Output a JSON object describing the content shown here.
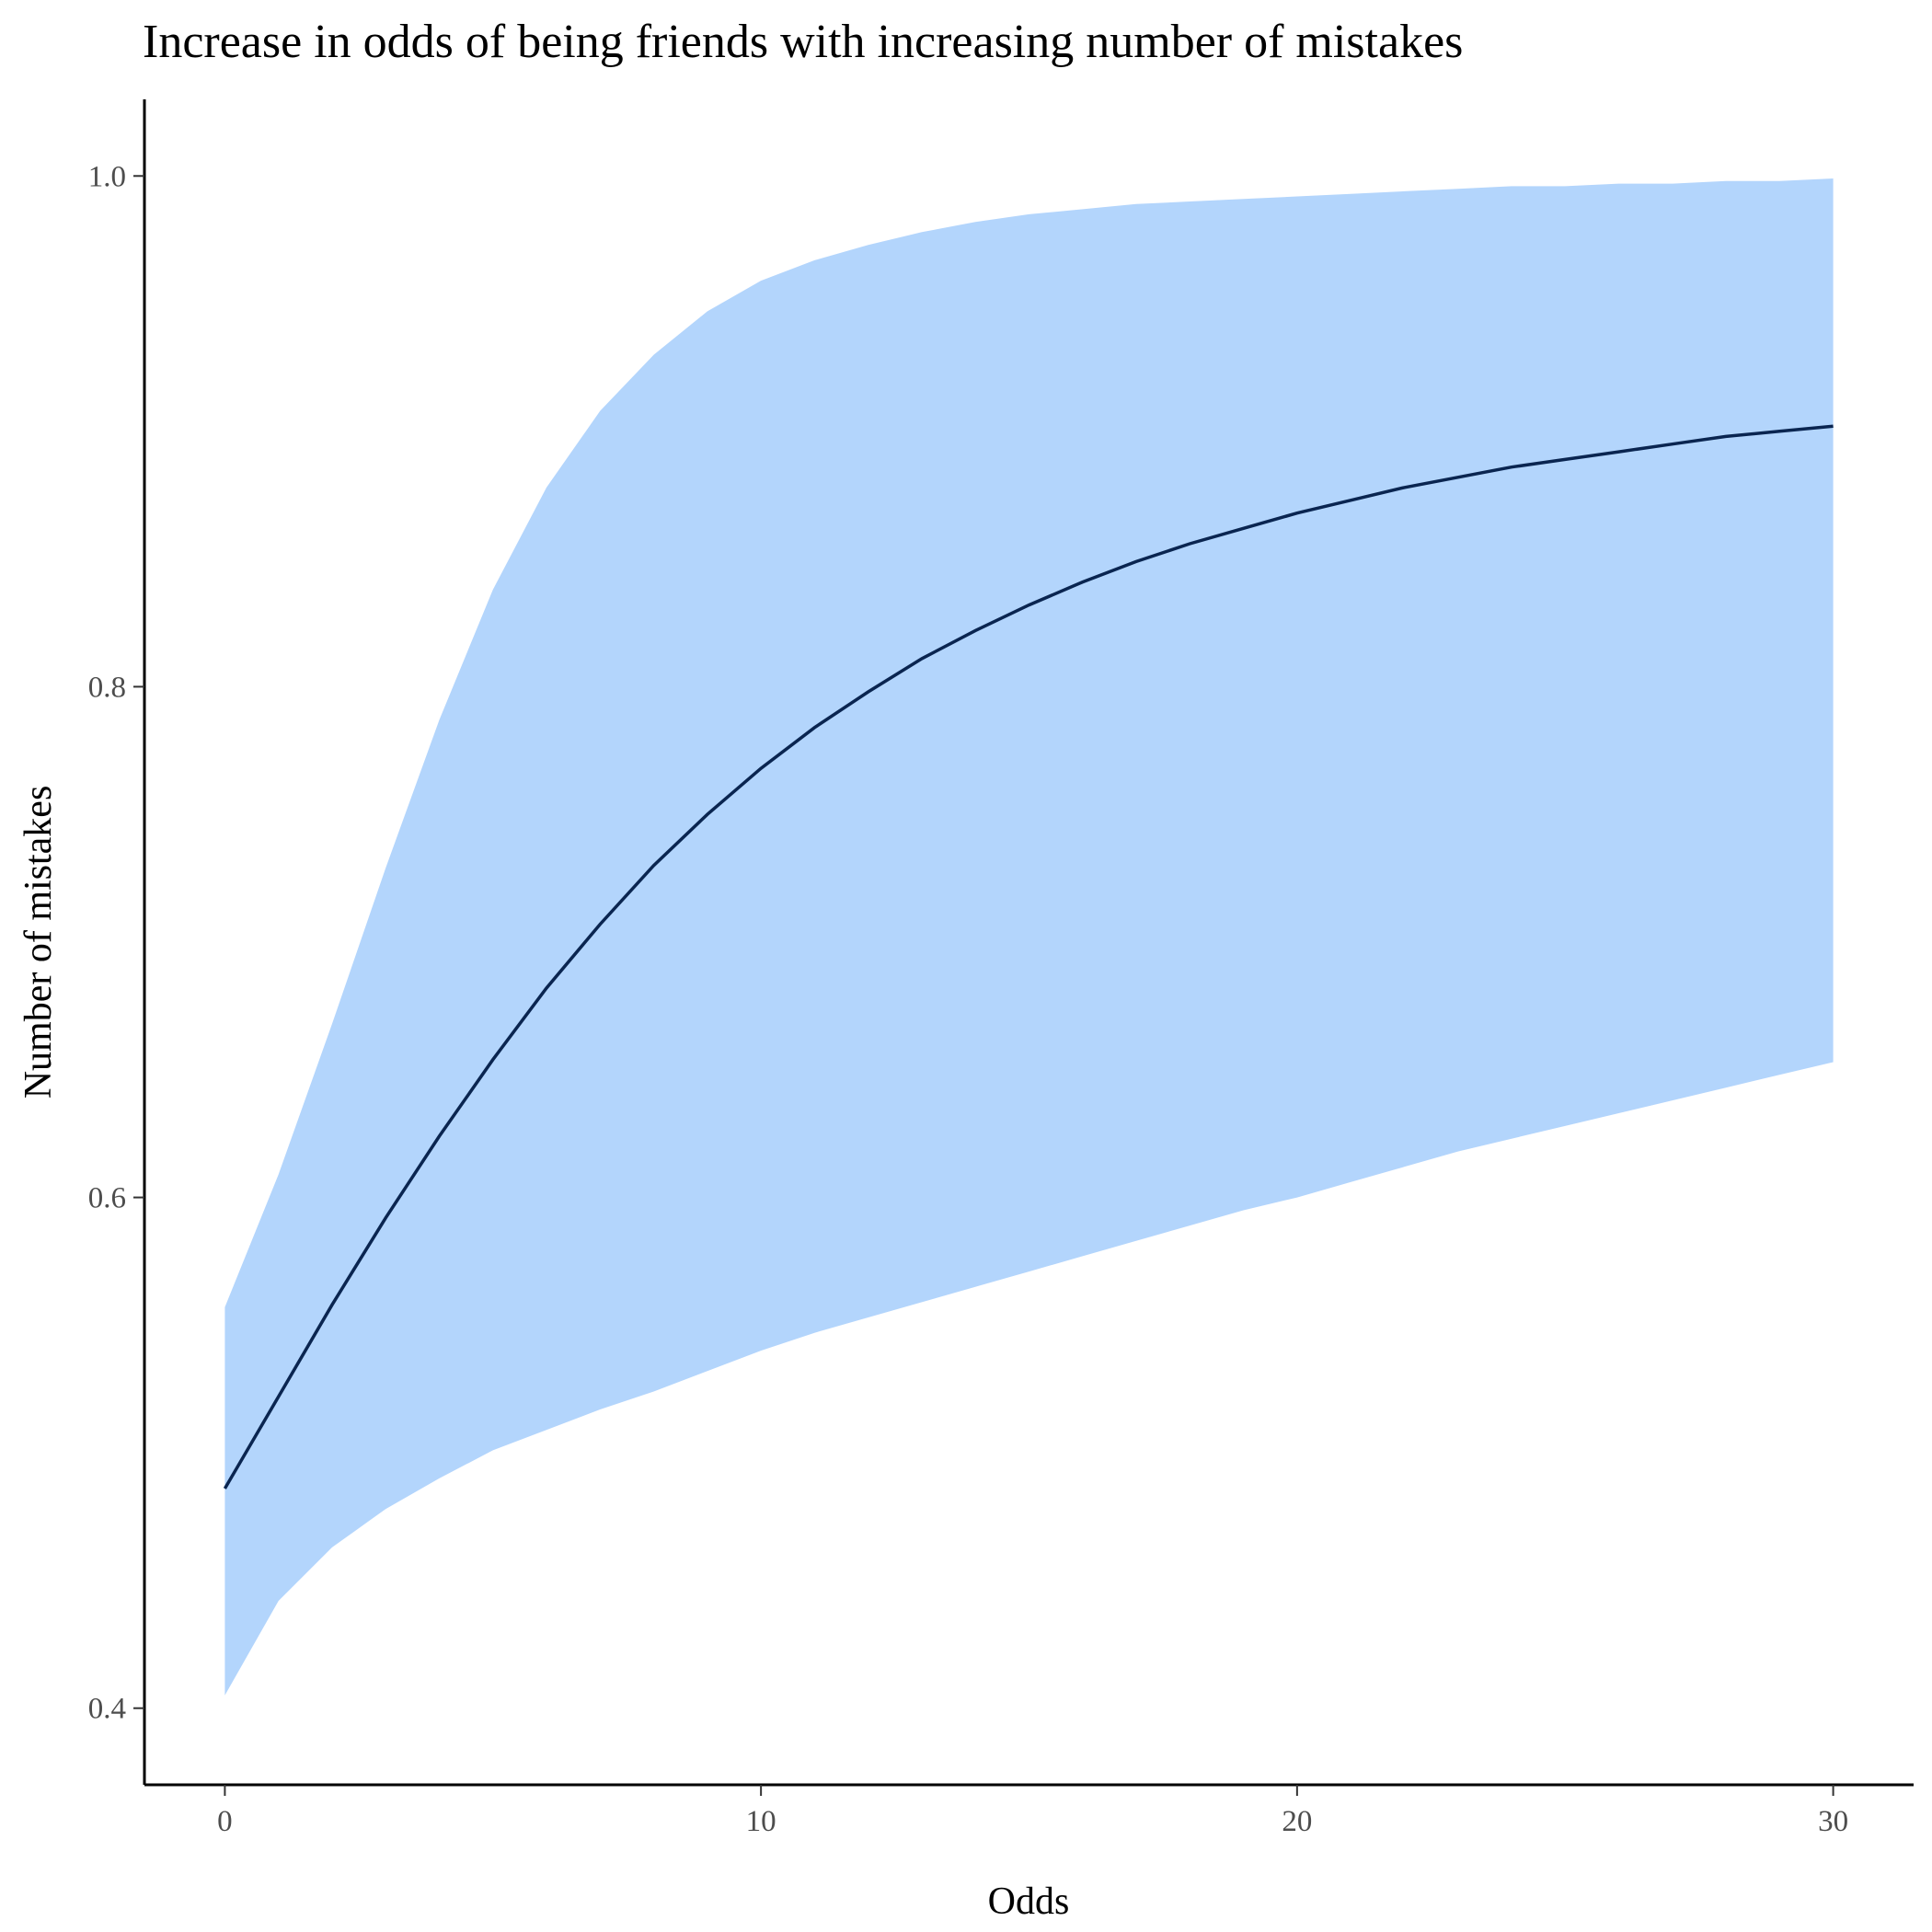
{
  "chart_data": {
    "type": "area",
    "title": "Increase in odds of being friends with increasing number of mistakes",
    "xlabel": "Odds",
    "ylabel": "Number of mistakes",
    "xlim": [
      -1.5,
      31.5
    ],
    "ylim": [
      0.37,
      1.03
    ],
    "x_ticks": [
      0,
      10,
      20,
      30
    ],
    "y_ticks": [
      0.4,
      0.6,
      0.8,
      1.0
    ],
    "x_tick_labels": [
      "0",
      "10",
      "20",
      "30"
    ],
    "y_tick_labels": [
      "0.4",
      "0.6",
      "0.8",
      "1.0"
    ],
    "grid": false,
    "legend": "none",
    "colors": {
      "ribbon": "#b3d5fc",
      "line": "#0a2550"
    },
    "x": [
      0,
      1,
      2,
      3,
      4,
      5,
      6,
      7,
      8,
      9,
      10,
      11,
      12,
      13,
      14,
      15,
      16,
      17,
      18,
      19,
      20,
      21,
      22,
      23,
      24,
      25,
      26,
      27,
      28,
      29,
      30
    ],
    "series": [
      {
        "kind": "line",
        "values": [
          0.486,
          0.522,
          0.558,
          0.592,
          0.624,
          0.654,
          0.682,
          0.707,
          0.73,
          0.75,
          0.768,
          0.784,
          0.798,
          0.811,
          0.822,
          0.832,
          0.841,
          0.849,
          0.856,
          0.862,
          0.868,
          0.873,
          0.878,
          0.882,
          0.886,
          0.889,
          0.892,
          0.895,
          0.898,
          0.9,
          0.902
        ]
      },
      {
        "kind": "band",
        "lower": [
          0.405,
          0.442,
          0.463,
          0.478,
          0.49,
          0.501,
          0.509,
          0.517,
          0.524,
          0.532,
          0.54,
          0.547,
          0.553,
          0.559,
          0.565,
          0.571,
          0.577,
          0.583,
          0.589,
          0.595,
          0.6,
          0.606,
          0.612,
          0.618,
          0.623,
          0.628,
          0.633,
          0.638,
          0.643,
          0.648,
          0.653
        ],
        "upper": [
          0.557,
          0.609,
          0.668,
          0.729,
          0.787,
          0.838,
          0.878,
          0.908,
          0.93,
          0.947,
          0.959,
          0.967,
          0.973,
          0.978,
          0.982,
          0.985,
          0.987,
          0.989,
          0.99,
          0.991,
          0.992,
          0.993,
          0.994,
          0.995,
          0.996,
          0.996,
          0.997,
          0.997,
          0.998,
          0.998,
          0.999
        ]
      }
    ]
  }
}
